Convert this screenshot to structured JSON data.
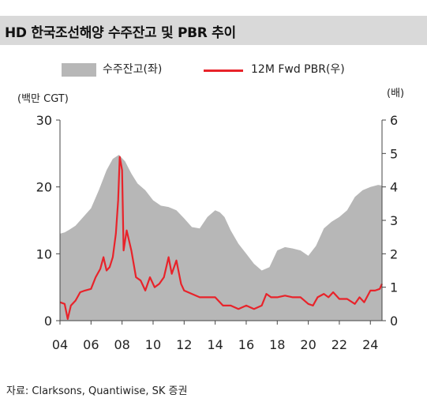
{
  "chart_data": {
    "type": "area+line",
    "title": "HD 한국조선해양 수주잔고 및 PBR 추이",
    "legend": [
      "수주잔고(좌)",
      "12M Fwd PBR(우)"
    ],
    "legend_position": "top-center",
    "left_unit": "(백만 CGT)",
    "right_unit": "(배)",
    "ylim_left": [
      0,
      30
    ],
    "ylim_right": [
      0,
      6
    ],
    "x_range": [
      2004,
      2024.75
    ],
    "x_ticks": [
      "04",
      "06",
      "08",
      "10",
      "12",
      "14",
      "16",
      "18",
      "20",
      "22",
      "24"
    ],
    "y_ticks_left": [
      "0",
      "10",
      "20",
      "30"
    ],
    "y_ticks_right": [
      "0",
      "1",
      "2",
      "3",
      "4",
      "5",
      "6"
    ],
    "grid": false,
    "colors": {
      "backlog": "#b7b7b7",
      "pbr": "#e8232a"
    },
    "series": [
      {
        "name": "수주잔고(좌)",
        "kind": "area",
        "x": [
          2004.0,
          2004.3,
          2004.6,
          2005.0,
          2005.5,
          2006.0,
          2006.5,
          2007.0,
          2007.4,
          2007.8,
          2008.2,
          2008.6,
          2009.0,
          2009.5,
          2010.0,
          2010.5,
          2011.0,
          2011.5,
          2012.0,
          2012.5,
          2013.0,
          2013.5,
          2014.0,
          2014.3,
          2014.6,
          2015.0,
          2015.5,
          2016.0,
          2016.5,
          2017.0,
          2017.5,
          2018.0,
          2018.5,
          2019.0,
          2019.5,
          2020.0,
          2020.5,
          2021.0,
          2021.5,
          2022.0,
          2022.5,
          2023.0,
          2023.5,
          2024.0,
          2024.5,
          2024.75
        ],
        "values": [
          13,
          13.2,
          13.6,
          14.2,
          15.5,
          16.8,
          19.5,
          22.5,
          24.2,
          24.8,
          23.8,
          22.0,
          20.5,
          19.5,
          18.0,
          17.2,
          17.0,
          16.5,
          15.3,
          14.0,
          13.8,
          15.5,
          16.5,
          16.2,
          15.5,
          13.5,
          11.5,
          10.0,
          8.5,
          7.5,
          8.0,
          10.5,
          11.0,
          10.8,
          10.5,
          9.7,
          11.2,
          13.8,
          14.8,
          15.5,
          16.5,
          18.5,
          19.5,
          20.0,
          20.3,
          20.2
        ]
      },
      {
        "name": "12M Fwd PBR(우)",
        "kind": "line",
        "x": [
          2004.0,
          2004.3,
          2004.5,
          2004.7,
          2005.0,
          2005.3,
          2005.6,
          2006.0,
          2006.3,
          2006.6,
          2006.8,
          2007.0,
          2007.2,
          2007.4,
          2007.6,
          2007.75,
          2007.85,
          2008.0,
          2008.1,
          2008.3,
          2008.6,
          2008.9,
          2009.2,
          2009.5,
          2009.8,
          2010.1,
          2010.4,
          2010.7,
          2011.0,
          2011.2,
          2011.5,
          2011.8,
          2012.0,
          2012.5,
          2013.0,
          2013.5,
          2014.0,
          2014.5,
          2015.0,
          2015.5,
          2016.0,
          2016.5,
          2017.0,
          2017.3,
          2017.6,
          2018.0,
          2018.5,
          2019.0,
          2019.5,
          2020.0,
          2020.3,
          2020.6,
          2021.0,
          2021.3,
          2021.6,
          2022.0,
          2022.5,
          2023.0,
          2023.3,
          2023.6,
          2024.0,
          2024.3,
          2024.6,
          2024.75
        ],
        "values": [
          0.55,
          0.5,
          0.05,
          0.45,
          0.6,
          0.85,
          0.9,
          0.95,
          1.3,
          1.55,
          1.9,
          1.5,
          1.6,
          1.9,
          2.6,
          3.6,
          4.9,
          4.5,
          2.1,
          2.7,
          2.1,
          1.3,
          1.2,
          0.9,
          1.3,
          1.0,
          1.1,
          1.3,
          1.9,
          1.4,
          1.8,
          1.1,
          0.9,
          0.8,
          0.7,
          0.7,
          0.7,
          0.45,
          0.45,
          0.35,
          0.45,
          0.35,
          0.45,
          0.8,
          0.7,
          0.7,
          0.75,
          0.7,
          0.7,
          0.5,
          0.45,
          0.7,
          0.8,
          0.7,
          0.85,
          0.65,
          0.65,
          0.5,
          0.7,
          0.55,
          0.9,
          0.9,
          0.95,
          1.1
        ]
      }
    ]
  },
  "source": "자료: Clarksons, Quantiwise, SK 증권"
}
